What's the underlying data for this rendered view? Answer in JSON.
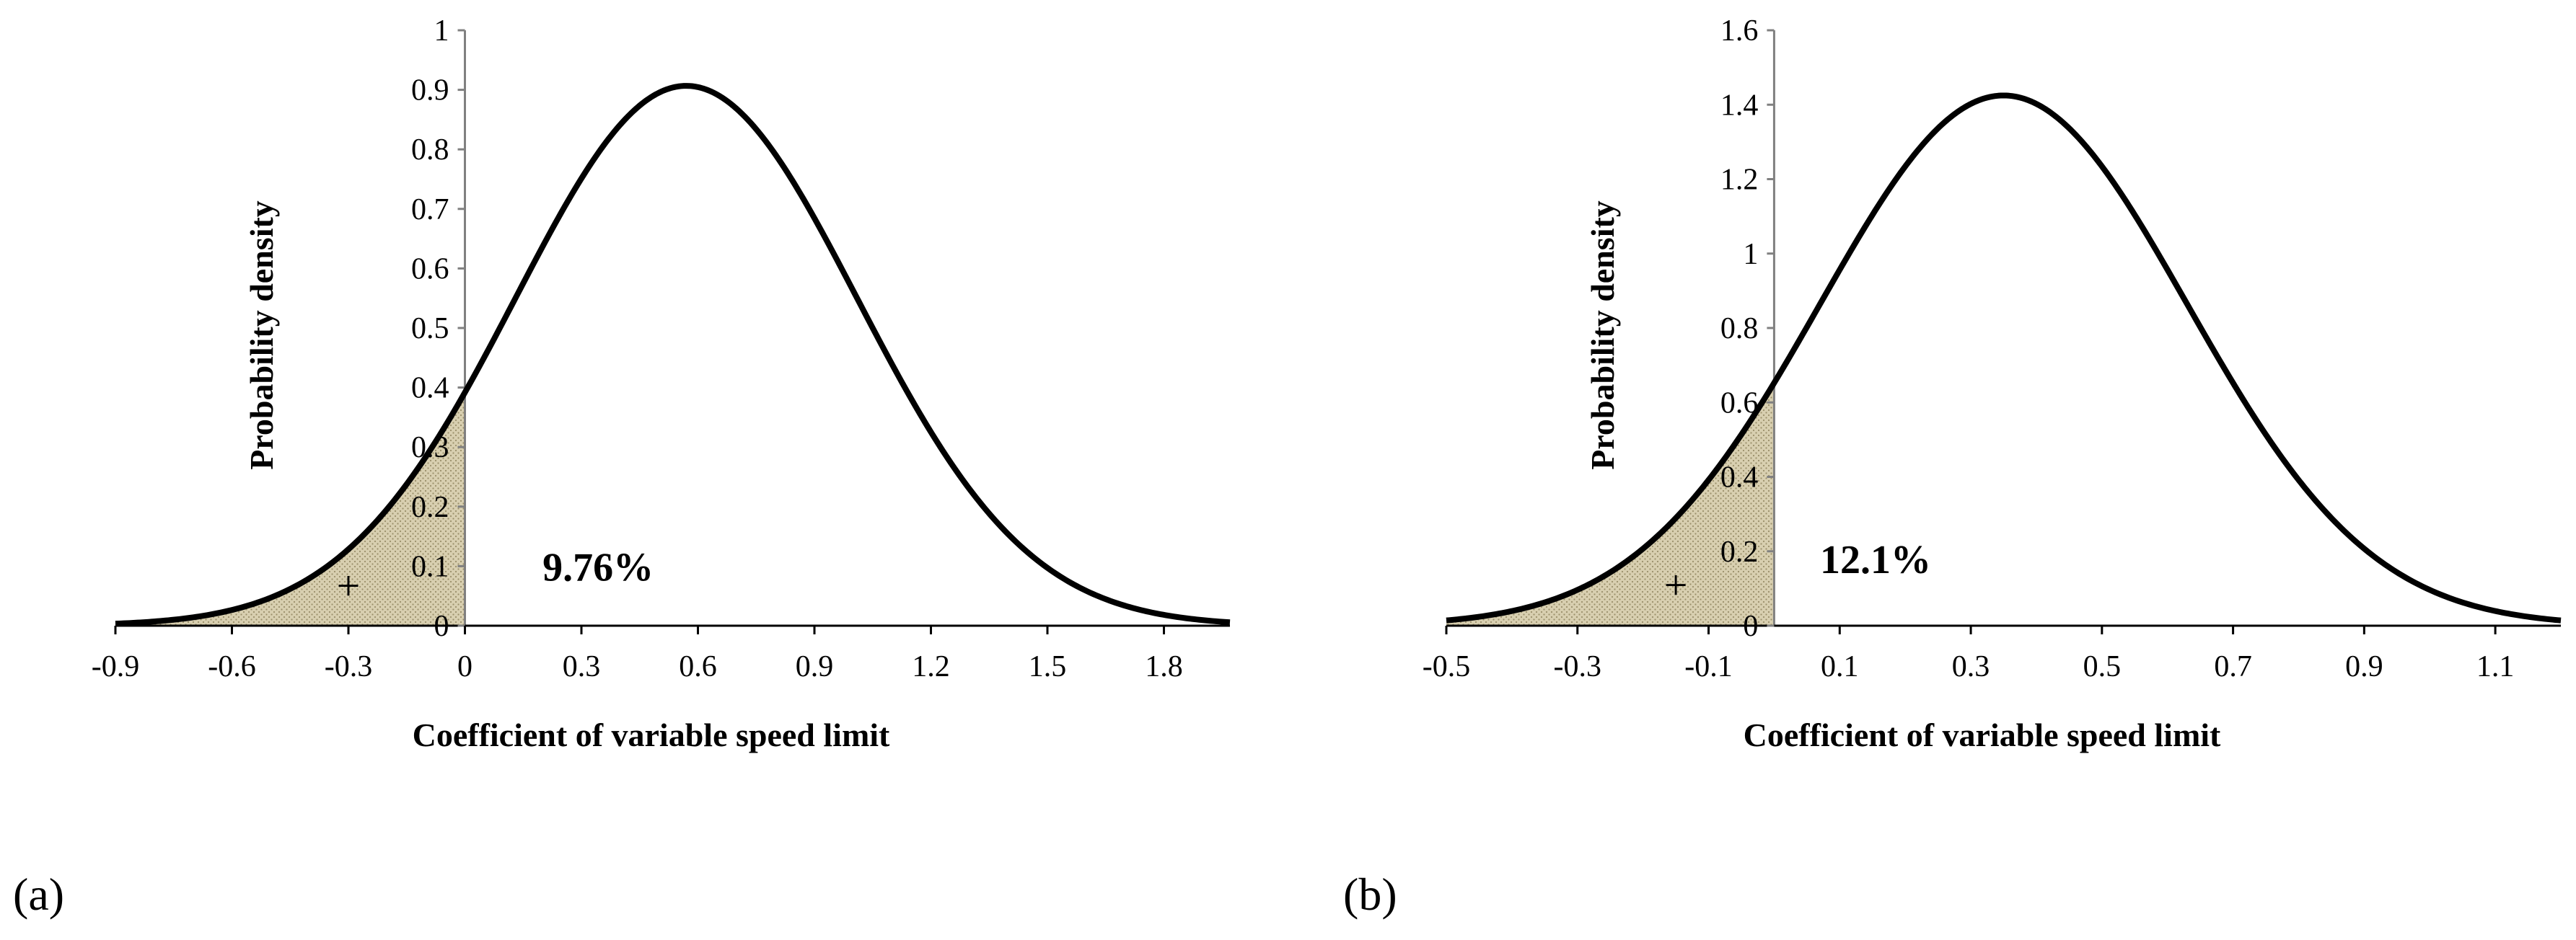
{
  "colors": {
    "curve": "#000000",
    "shade": "#d8cfb0",
    "axis": "#808080"
  },
  "chart_data": [
    {
      "type": "area",
      "panel_label": "(a)",
      "distribution": {
        "mean": 0.57,
        "std": 0.44
      },
      "curve_points": [
        [
          -0.9,
          0.01
        ],
        [
          -0.6,
          0.05
        ],
        [
          -0.3,
          0.16
        ],
        [
          0,
          0.39
        ],
        [
          0.3,
          0.75
        ],
        [
          0.57,
          0.905
        ],
        [
          0.9,
          0.69
        ],
        [
          1.2,
          0.33
        ],
        [
          1.5,
          0.1
        ],
        [
          1.8,
          0.02
        ],
        [
          1.95,
          0.005
        ]
      ],
      "shaded_region": {
        "from": -0.9,
        "to": 0,
        "probability_label": "9.76%",
        "marker": "+"
      },
      "xlim": [
        -0.9,
        1.97
      ],
      "ylim": [
        0,
        1
      ],
      "xticks": [
        -0.9,
        -0.6,
        -0.3,
        0,
        0.3,
        0.6,
        0.9,
        1.2,
        1.5,
        1.8
      ],
      "xtick_labels": [
        "-0.9",
        "-0.6",
        "-0.3",
        "0",
        "0.3",
        "0.6",
        "0.9",
        "1.2",
        "1.5",
        "1.8"
      ],
      "yticks": [
        0,
        0.1,
        0.2,
        0.3,
        0.4,
        0.5,
        0.6,
        0.7,
        0.8,
        0.9,
        1
      ],
      "ytick_labels": [
        "0",
        "0.1",
        "0.2",
        "0.3",
        "0.4",
        "0.5",
        "0.6",
        "0.7",
        "0.8",
        "0.9",
        "1"
      ],
      "xlabel": "Coefficient  of variable speed limit",
      "ylabel": "Probability density",
      "grid": false
    },
    {
      "type": "area",
      "panel_label": "(b)",
      "distribution": {
        "mean": 0.35,
        "std": 0.28
      },
      "curve_points": [
        [
          -0.5,
          0.01
        ],
        [
          -0.3,
          0.07
        ],
        [
          -0.1,
          0.38
        ],
        [
          0,
          0.65
        ],
        [
          0.1,
          0.95
        ],
        [
          0.2,
          1.23
        ],
        [
          0.35,
          1.42
        ],
        [
          0.5,
          1.23
        ],
        [
          0.7,
          0.65
        ],
        [
          0.9,
          0.21
        ],
        [
          1.1,
          0.04
        ],
        [
          1.2,
          0.015
        ]
      ],
      "shaded_region": {
        "from": -0.5,
        "to": 0,
        "probability_label": "12.1%",
        "marker": "+"
      },
      "xlim": [
        -0.5,
        1.2
      ],
      "ylim": [
        0,
        1.6
      ],
      "xticks": [
        -0.5,
        -0.3,
        -0.1,
        0.1,
        0.3,
        0.5,
        0.7,
        0.9,
        1.1
      ],
      "xtick_labels": [
        "-0.5",
        "-0.3",
        "-0.1",
        "0.1",
        "0.3",
        "0.5",
        "0.7",
        "0.9",
        "1.1"
      ],
      "yticks": [
        0,
        0.2,
        0.4,
        0.6,
        0.8,
        1,
        1.2,
        1.4,
        1.6
      ],
      "ytick_labels": [
        "0",
        "0.2",
        "0.4",
        "0.6",
        "0.8",
        "1",
        "1.2",
        "1.4",
        "1.6"
      ],
      "xlabel": "Coefficient  of variable speed limit",
      "ylabel": "Probability density",
      "grid": false
    }
  ]
}
